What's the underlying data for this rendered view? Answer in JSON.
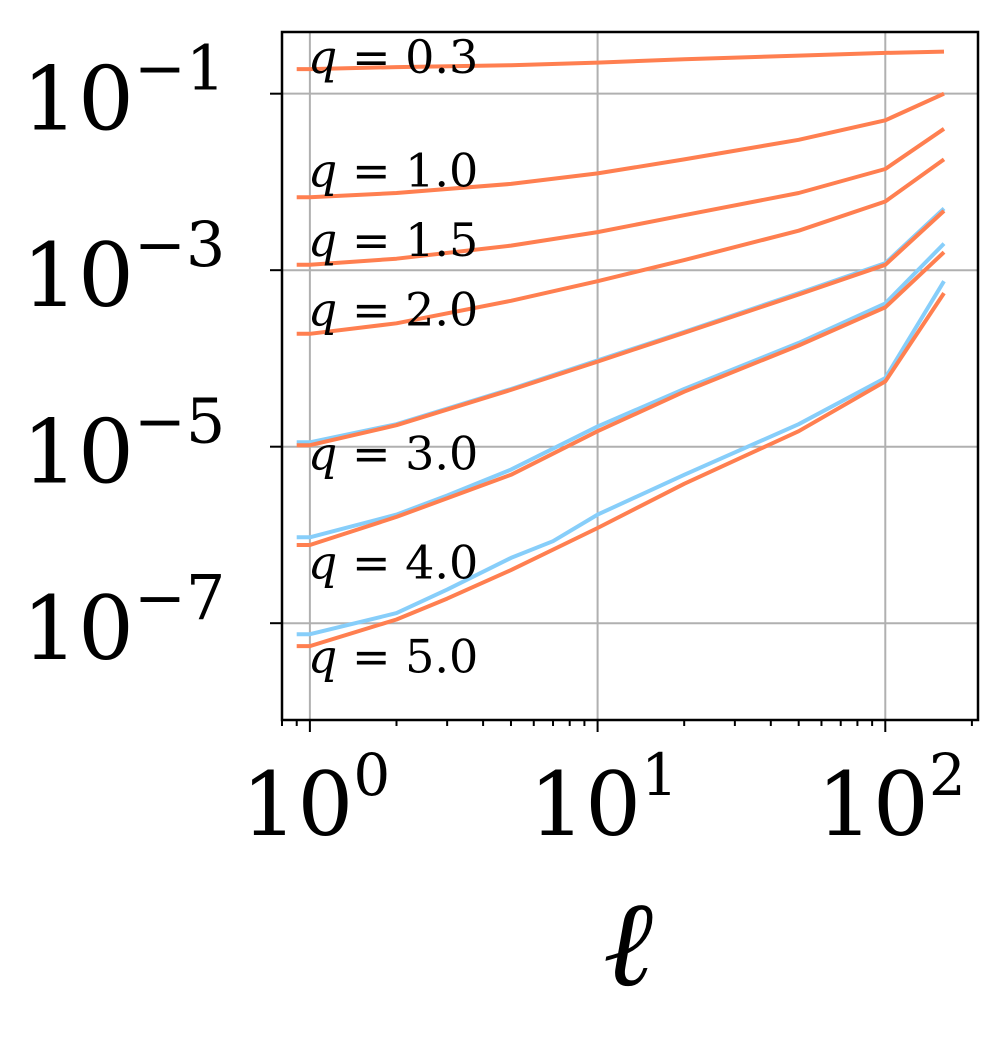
{
  "chart_data": {
    "type": "line",
    "xlabel": "ℓ",
    "ylabel": "",
    "x_scale": "log",
    "y_scale": "log",
    "xlim": [
      0.8,
      210
    ],
    "ylim": [
      8e-09,
      0.5
    ],
    "grid": true,
    "x_ticks": [
      {
        "value": 1,
        "base": "10",
        "exp": "0"
      },
      {
        "value": 10,
        "base": "10",
        "exp": "1"
      },
      {
        "value": 100,
        "base": "10",
        "exp": "2"
      }
    ],
    "y_ticks": [
      {
        "value": 0.1,
        "base": "10",
        "exp": "−1"
      },
      {
        "value": 0.001,
        "base": "10",
        "exp": "−3"
      },
      {
        "value": 1e-05,
        "base": "10",
        "exp": "−5"
      },
      {
        "value": 1e-07,
        "base": "10",
        "exp": "−7"
      }
    ],
    "colors": {
      "orange": "#ff7f50",
      "blue": "#87cefa"
    },
    "annotations": [
      {
        "var": "q",
        "text": " = 0.3",
        "x": 1.0,
        "y": 0.26
      },
      {
        "var": "q",
        "text": " = 1.0",
        "x": 1.0,
        "y": 0.0135
      },
      {
        "var": "q",
        "text": " = 1.5",
        "x": 1.0,
        "y": 0.0022
      },
      {
        "var": "q",
        "text": " = 2.0",
        "x": 1.0,
        "y": 0.00036
      },
      {
        "var": "q",
        "text": " = 3.0",
        "x": 1.0,
        "y": 8.4e-06
      },
      {
        "var": "q",
        "text": " = 4.0",
        "x": 1.0,
        "y": 4.9e-07
      },
      {
        "var": "q",
        "text": " = 5.0",
        "x": 1.0,
        "y": 4.2e-08
      }
    ],
    "series": [
      {
        "color": "orange",
        "x": [
          0.9,
          1,
          2,
          5,
          10,
          20,
          50,
          100,
          160
        ],
        "y": [
          0.19,
          0.19,
          0.2,
          0.21,
          0.225,
          0.245,
          0.27,
          0.29,
          0.3
        ]
      },
      {
        "color": "orange",
        "x": [
          0.9,
          1,
          2,
          5,
          10,
          20,
          50,
          100,
          160
        ],
        "y": [
          0.0067,
          0.0067,
          0.0075,
          0.0095,
          0.0125,
          0.018,
          0.03,
          0.05,
          0.1
        ]
      },
      {
        "color": "orange",
        "x": [
          0.9,
          1,
          2,
          5,
          10,
          20,
          50,
          100,
          160
        ],
        "y": [
          0.00115,
          0.00115,
          0.00135,
          0.0019,
          0.0027,
          0.0042,
          0.0075,
          0.014,
          0.04
        ]
      },
      {
        "color": "orange",
        "x": [
          0.9,
          1,
          2,
          5,
          10,
          20,
          50,
          100,
          160
        ],
        "y": [
          0.00019,
          0.00019,
          0.00025,
          0.00045,
          0.00075,
          0.0013,
          0.0028,
          0.006,
          0.018
        ]
      },
      {
        "color": "blue",
        "x": [
          0.9,
          1,
          2,
          5,
          10,
          20,
          50,
          100,
          160
        ],
        "y": [
          1.12e-05,
          1.12e-05,
          1.8e-05,
          4.5e-05,
          9.5e-05,
          0.0002,
          0.00055,
          0.0012,
          0.005
        ]
      },
      {
        "color": "orange",
        "x": [
          0.9,
          1,
          2,
          5,
          10,
          20,
          50,
          100,
          160
        ],
        "y": [
          1.04e-05,
          1.04e-05,
          1.75e-05,
          4.4e-05,
          9.2e-05,
          0.000195,
          0.00053,
          0.00115,
          0.0047
        ]
      },
      {
        "color": "blue",
        "x": [
          0.9,
          1,
          2,
          3,
          5,
          10,
          20,
          50,
          100,
          160
        ],
        "y": [
          9.4e-07,
          9.4e-07,
          1.7e-06,
          2.8e-06,
          5.5e-06,
          1.7e-05,
          4.5e-05,
          0.00015,
          0.00042,
          0.002
        ]
      },
      {
        "color": "orange",
        "x": [
          0.9,
          1,
          2,
          5,
          10,
          20,
          50,
          100,
          160
        ],
        "y": [
          7.7e-07,
          7.7e-07,
          1.6e-06,
          4.8e-06,
          1.5e-05,
          4.2e-05,
          0.00014,
          0.00038,
          0.0016
        ]
      },
      {
        "color": "blue",
        "x": [
          0.9,
          1,
          2,
          3,
          5,
          7,
          10,
          20,
          50,
          100,
          160
        ],
        "y": [
          7.5e-08,
          7.5e-08,
          1.3e-07,
          2.4e-07,
          5.5e-07,
          8.5e-07,
          1.7e-06,
          4.8e-06,
          1.8e-05,
          6e-05,
          0.00075
        ]
      },
      {
        "color": "orange",
        "x": [
          0.9,
          1,
          2,
          3,
          5,
          10,
          20,
          50,
          100,
          160
        ],
        "y": [
          5.5e-08,
          5.5e-08,
          1.1e-07,
          1.9e-07,
          4e-07,
          1.2e-06,
          3.8e-06,
          1.5e-05,
          5.5e-05,
          0.00055
        ]
      }
    ]
  }
}
